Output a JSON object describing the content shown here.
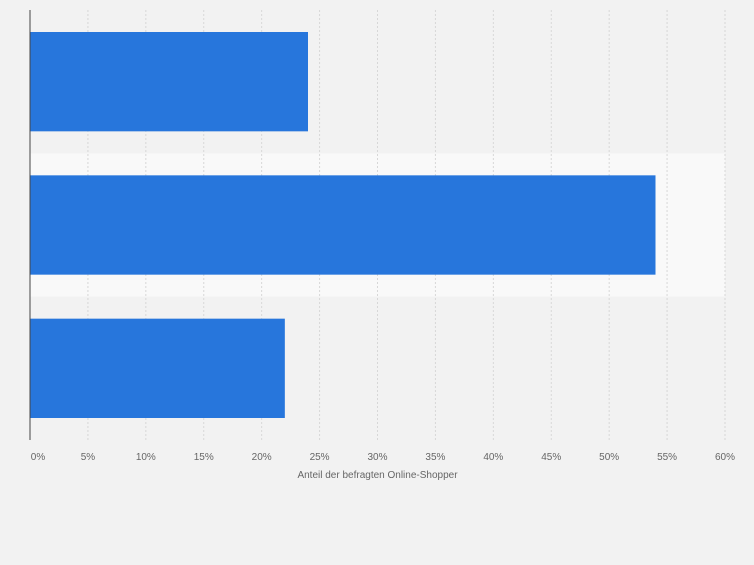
{
  "chart_data": {
    "type": "bar",
    "orientation": "horizontal",
    "categories": [
      "",
      "",
      ""
    ],
    "values": [
      24,
      54,
      22
    ],
    "xlabel": "Anteil der befragten Online-Shopper",
    "ylabel": "",
    "xlim": [
      0,
      60
    ],
    "xticks": [
      0,
      5,
      10,
      15,
      20,
      25,
      30,
      35,
      40,
      45,
      50,
      55,
      60
    ],
    "tick_suffix": "%",
    "grid": true,
    "legend": "none",
    "colors": {
      "bar": "#2776dc",
      "background": "#f2f2f2",
      "band": "#f9f9f9",
      "grid": "#d7d7d7",
      "axis": "#444444",
      "text": "#666666"
    }
  }
}
